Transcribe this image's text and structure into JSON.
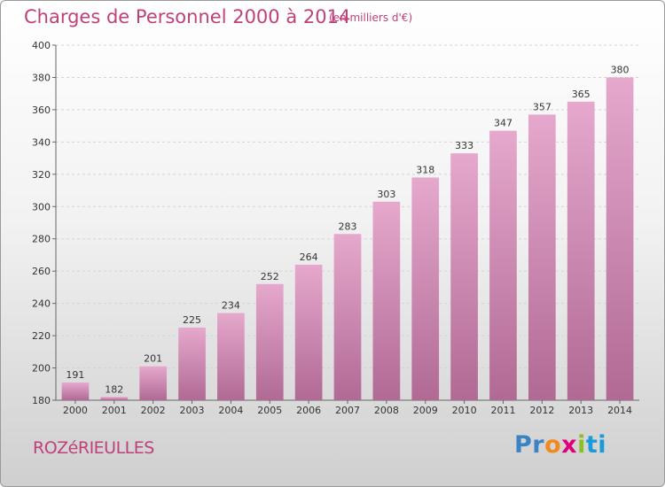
{
  "header": {
    "title": "Charges de Personnel 2000 à 2014",
    "subtitle": "(en milliers d'€)"
  },
  "footer": {
    "commune": "ROZéRIEULLES",
    "logo_parts": [
      "Pr",
      "o",
      "x",
      "i",
      "ti"
    ]
  },
  "colors": {
    "title": "#c0407a",
    "bar_top": "#e6a8cd",
    "bar_bottom": "#b06a94",
    "logo": [
      "#3b83c4",
      "#f18a1c",
      "#e0007a",
      "#8cbf26",
      "#1a9ad6"
    ]
  },
  "chart_data": {
    "type": "bar",
    "title": "Charges de Personnel 2000 à 2014",
    "subtitle": "(en milliers d'€)",
    "xlabel": "",
    "ylabel": "",
    "categories": [
      "2000",
      "2001",
      "2002",
      "2003",
      "2004",
      "2005",
      "2006",
      "2007",
      "2008",
      "2009",
      "2010",
      "2011",
      "2012",
      "2013",
      "2014"
    ],
    "values": [
      191,
      182,
      201,
      225,
      234,
      252,
      264,
      283,
      303,
      318,
      333,
      347,
      357,
      365,
      380
    ],
    "ylim": [
      180,
      400
    ],
    "yticks": [
      180,
      200,
      220,
      240,
      260,
      280,
      300,
      320,
      340,
      360,
      380,
      400
    ],
    "grid": true,
    "legend": "none"
  }
}
